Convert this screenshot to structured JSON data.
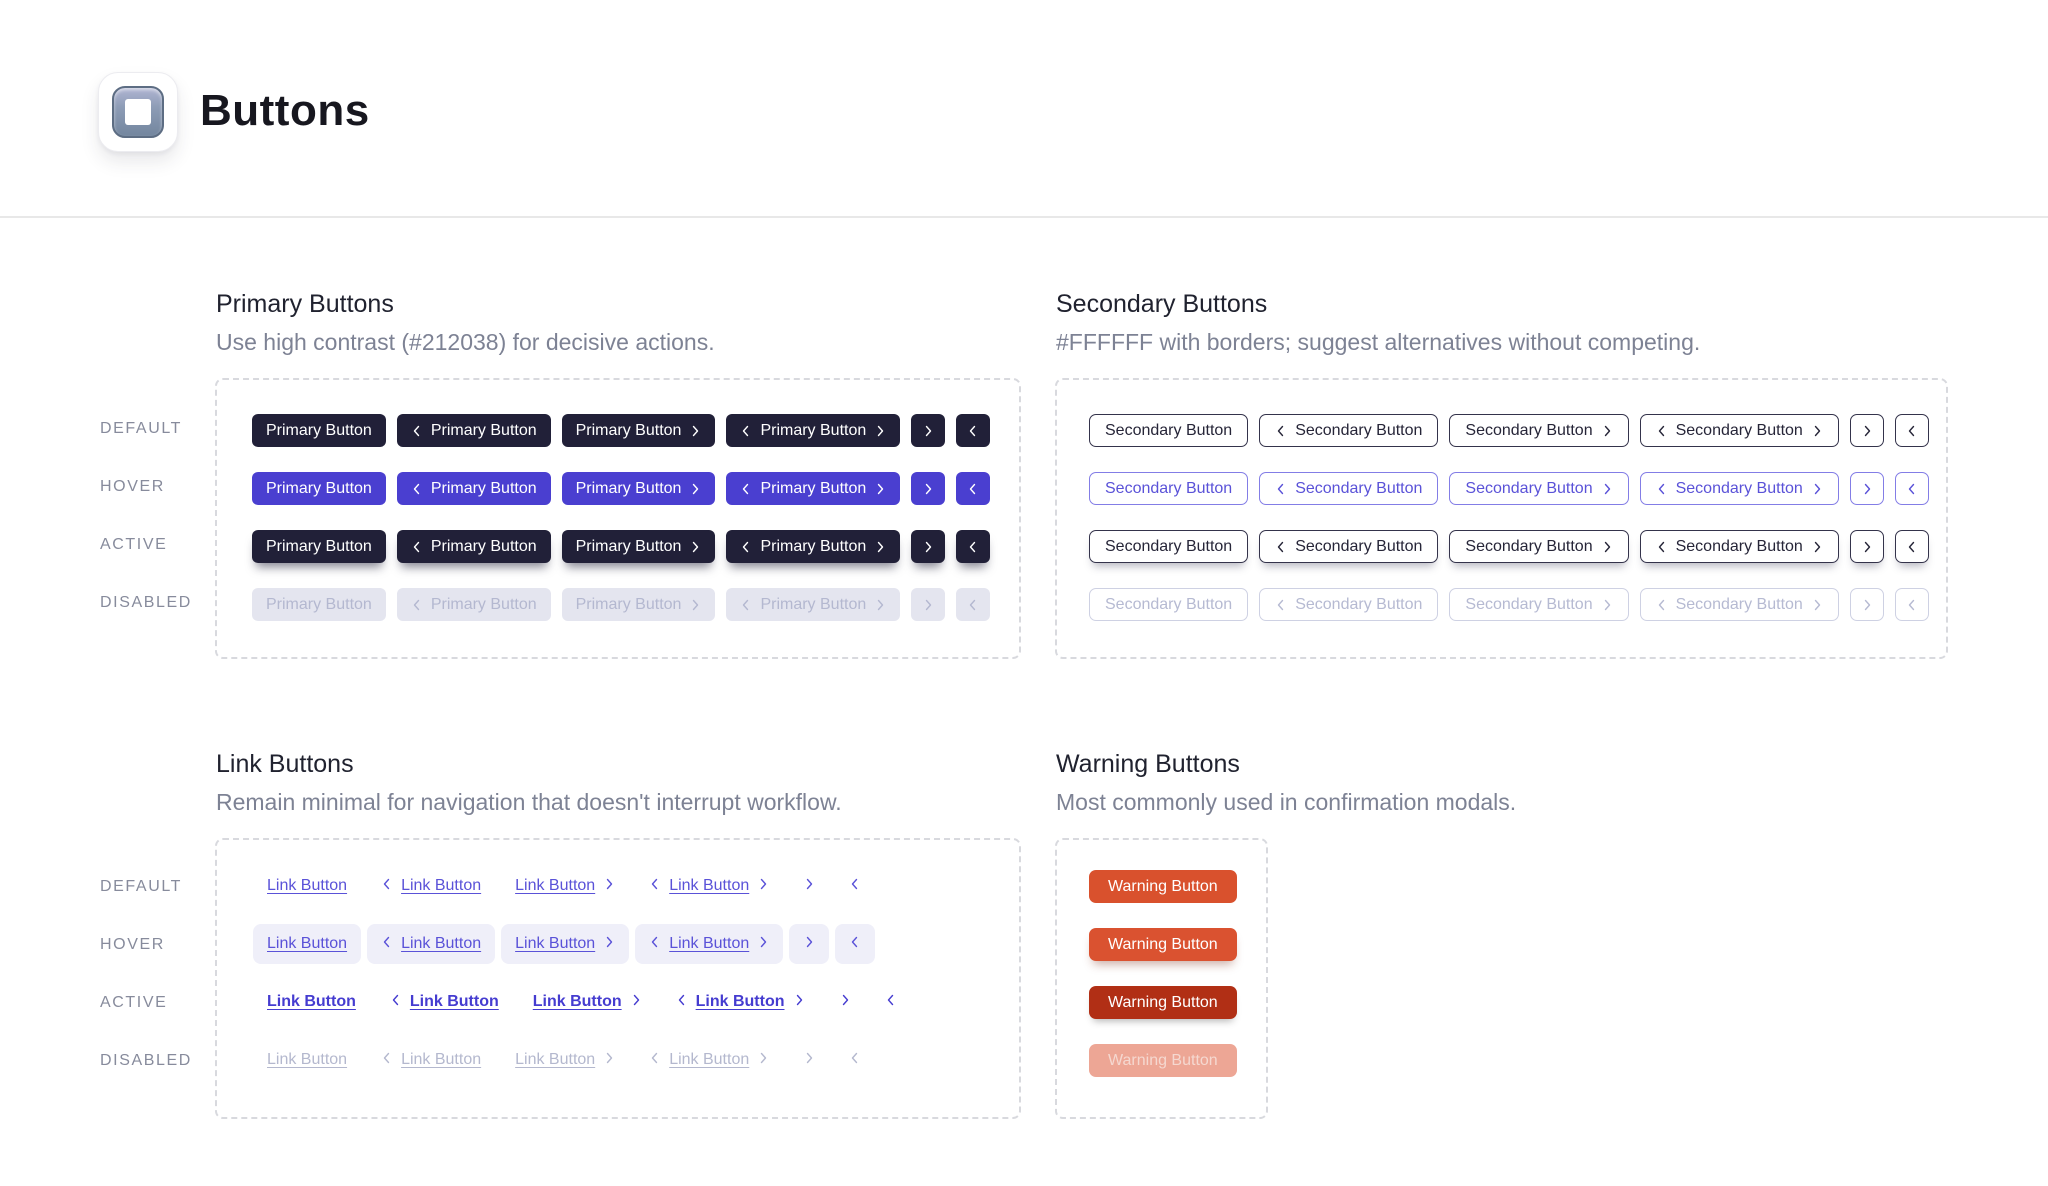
{
  "header": {
    "title": "Buttons",
    "icon": "button-emoji"
  },
  "states": [
    {
      "id": "default",
      "label": "DEFAULT"
    },
    {
      "id": "hover",
      "label": "HOVER"
    },
    {
      "id": "active",
      "label": "ACTIVE"
    },
    {
      "id": "disabled",
      "label": "DISABLED"
    }
  ],
  "variants_full": [
    "plain",
    "chevron-left",
    "chevron-right",
    "chevron-both",
    "icon-right",
    "icon-left"
  ],
  "sections": {
    "primary": {
      "title": "Primary Buttons",
      "subtitle": "Use high contrast (#212038) for decisive actions.",
      "button_label": "Primary Button"
    },
    "secondary": {
      "title": "Secondary Buttons",
      "subtitle": "#FFFFFF with borders; suggest alternatives without competing.",
      "button_label": "Secondary Button"
    },
    "link": {
      "title": "Link Buttons",
      "subtitle": "Remain minimal for navigation that doesn't interrupt workflow.",
      "button_label": "Link Button"
    },
    "warning": {
      "title": "Warning Buttons",
      "subtitle": "Most commonly used in confirmation modals.",
      "button_label": "Warning Button"
    }
  },
  "colors": {
    "page_bg": "#ffffff",
    "divider": "#e8e8e8",
    "heading_text": "#20222f",
    "subtitle_text": "#7d8294",
    "state_label_text": "#878b9c",
    "dashed_border": "#d8d9de",
    "primary_default_bg": "#212038",
    "primary_hover_bg": "#4a3fd0",
    "primary_active_bg": "#212038",
    "primary_disabled_bg": "#e4e5ef",
    "primary_text": "#ffffff",
    "primary_disabled_text": "#b4b8d0",
    "secondary_bg": "#ffffff",
    "secondary_border": "#34334b",
    "secondary_text": "#262538",
    "secondary_hover_border": "#837de6",
    "secondary_hover_text": "#5a52d8",
    "secondary_disabled_border": "#ced1e3",
    "secondary_disabled_text": "#b6bad2",
    "link_text": "#5a52d8",
    "link_hover_bg": "#efeff9",
    "link_active_text": "#453cd0",
    "link_disabled_text": "#b4b8ce",
    "warning_default_bg": "#d9512d",
    "warning_hover_bg": "#da5230",
    "warning_active_bg": "#b12f15",
    "warning_disabled_bg": "#eda695",
    "warning_text": "#ffffff",
    "warning_disabled_text": "#f5d8d0"
  }
}
